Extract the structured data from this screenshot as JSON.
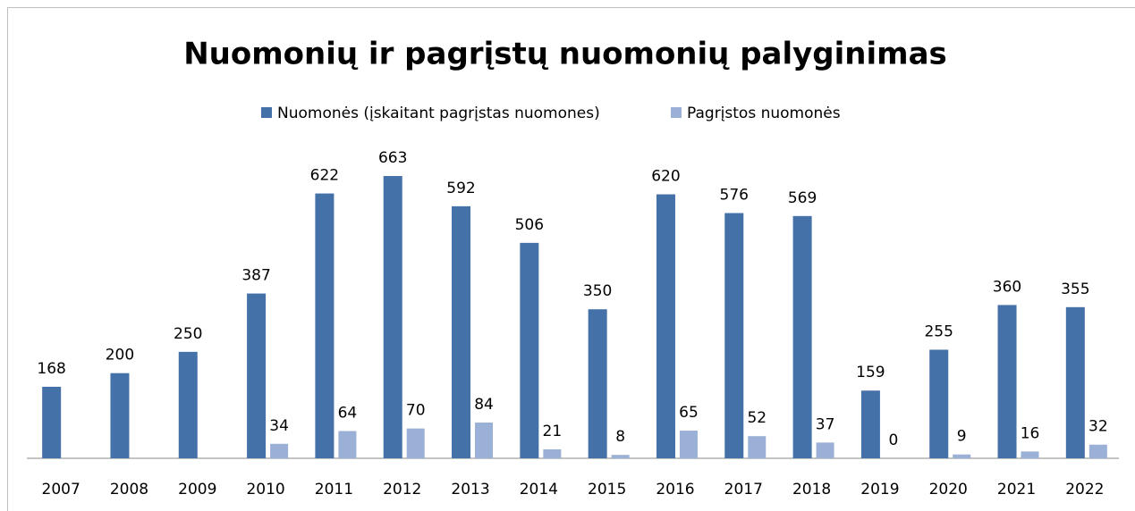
{
  "chart_data": {
    "type": "bar",
    "title": "Nuomonių ir pagrįstų nuomonių palyginimas",
    "categories": [
      "2007",
      "2008",
      "2009",
      "2010",
      "2011",
      "2012",
      "2013",
      "2014",
      "2015",
      "2016",
      "2017",
      "2018",
      "2019",
      "2020",
      "2021",
      "2022"
    ],
    "series": [
      {
        "name": "Nuomonės (įskaitant pagrįstas nuomones)",
        "color": "#4571a9",
        "values": [
          168,
          200,
          250,
          387,
          622,
          663,
          592,
          506,
          350,
          620,
          576,
          569,
          159,
          255,
          360,
          355
        ]
      },
      {
        "name": "Pagrįstos nuomonės",
        "color": "#9bb0d6",
        "values": [
          null,
          null,
          null,
          34,
          64,
          70,
          84,
          21,
          8,
          65,
          52,
          37,
          0,
          9,
          16,
          32
        ]
      }
    ],
    "ylim": [
      0,
      700
    ],
    "legend": "top",
    "grid": false
  }
}
